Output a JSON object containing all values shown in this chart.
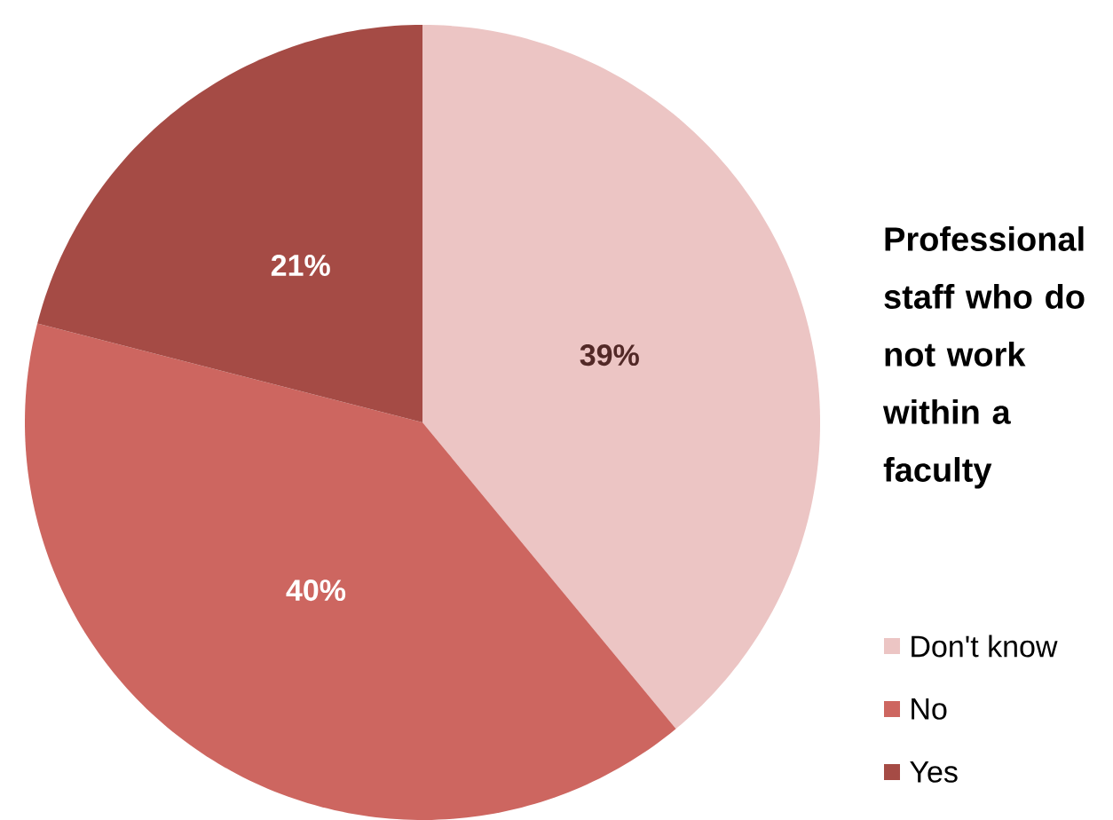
{
  "chart_data": {
    "type": "pie",
    "title": "Professional staff who do not work within a faculty",
    "categories": [
      "Don't know",
      "No",
      "Yes"
    ],
    "values": [
      39,
      40,
      21
    ],
    "value_labels": [
      "39%",
      "40%",
      "21%"
    ],
    "colors": [
      "#ecc5c4",
      "#cd6660",
      "#a54b45"
    ],
    "legend": "bottom right"
  }
}
